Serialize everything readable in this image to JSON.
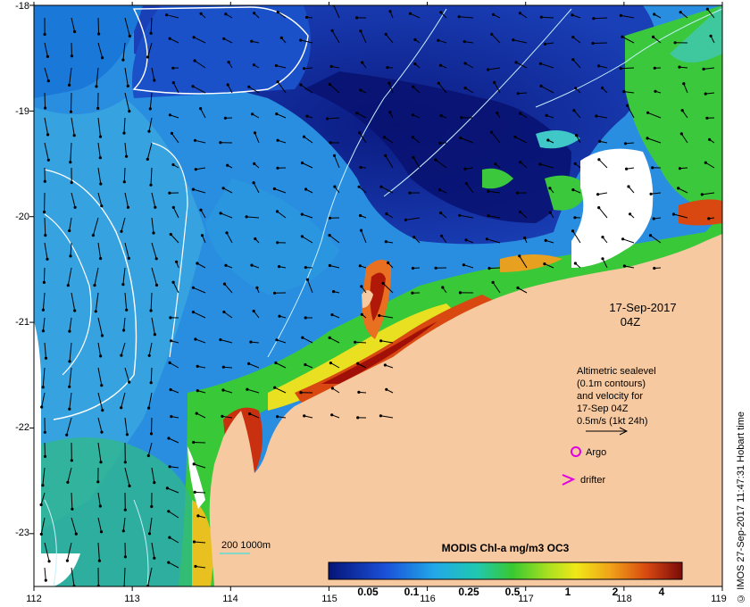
{
  "map": {
    "longitude_ticks": [
      "112",
      "113",
      "114",
      "115",
      "116",
      "117",
      "118",
      "119"
    ],
    "latitude_ticks": [
      "-18",
      "-19",
      "-20",
      "-21",
      "-22",
      "-23"
    ],
    "lon_range": [
      112,
      119
    ],
    "lat_range": [
      -18,
      -23.5
    ]
  },
  "annotations": {
    "date": "17-Sep-2017",
    "time": "04Z",
    "altimetry_lines": [
      "Altimetric sealevel",
      "(0.1m contours)",
      "and velocity for",
      "17-Sep 04Z",
      "0.5m/s (1kt 24h)"
    ],
    "argo_label": "Argo",
    "drifter_label": "drifter",
    "depth_label": "200  1000m"
  },
  "colorbar": {
    "title": "MODIS Chl-a mg/m3 OC3",
    "ticks": [
      "0.05",
      "0.1",
      "0.25",
      "0.5",
      "1",
      "2",
      "4"
    ]
  },
  "colors": {
    "land": "#f7c9a0",
    "cloud": "#ffffff",
    "deep_blue": "#0a1a8a",
    "mid_blue": "#1e78d8",
    "cyan": "#2aaee0",
    "green": "#3cc83c",
    "yellow": "#f0e020",
    "red": "#c81e0a",
    "marker": "#e000e0"
  },
  "credit": "© IMOS 27-Sep-2017 11:47:31 Hobart time"
}
